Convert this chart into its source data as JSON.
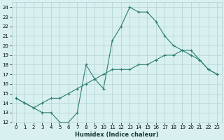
{
  "line1_x": [
    0,
    1,
    2,
    3,
    4,
    5,
    6,
    7,
    8,
    9,
    10,
    11,
    12,
    13,
    14,
    15,
    16,
    17,
    18,
    19,
    20,
    21,
    22,
    23
  ],
  "line1_y": [
    14.5,
    14.0,
    13.5,
    13.0,
    13.0,
    12.0,
    12.0,
    13.0,
    18.0,
    16.5,
    15.5,
    20.5,
    22.0,
    24.0,
    23.5,
    23.5,
    22.5,
    21.0,
    20.0,
    19.5,
    19.5,
    18.5,
    17.5,
    17.0
  ],
  "line2_x": [
    0,
    1,
    2,
    3,
    4,
    5,
    6,
    7,
    8,
    9,
    10,
    11,
    12,
    13,
    14,
    15,
    16,
    17,
    18,
    19,
    20,
    21,
    22,
    23
  ],
  "line2_y": [
    14.5,
    14.0,
    13.5,
    14.0,
    14.5,
    14.5,
    15.0,
    15.5,
    16.0,
    16.5,
    17.0,
    17.5,
    17.5,
    17.5,
    18.0,
    18.0,
    18.5,
    19.0,
    19.0,
    19.5,
    19.0,
    18.5,
    17.5,
    17.0
  ],
  "line_color": "#2e7d6e",
  "bg_color": "#d8f0f0",
  "grid_color": "#b8d8d8",
  "xlabel": "Humidex (Indice chaleur)",
  "xlim": [
    -0.5,
    23.5
  ],
  "ylim": [
    12,
    24.5
  ],
  "xticks": [
    0,
    1,
    2,
    3,
    4,
    5,
    6,
    7,
    8,
    9,
    10,
    11,
    12,
    13,
    14,
    15,
    16,
    17,
    18,
    19,
    20,
    21,
    22,
    23
  ],
  "yticks": [
    12,
    13,
    14,
    15,
    16,
    17,
    18,
    19,
    20,
    21,
    22,
    23,
    24
  ],
  "tick_fontsize": 5.0,
  "xlabel_fontsize": 6.0
}
